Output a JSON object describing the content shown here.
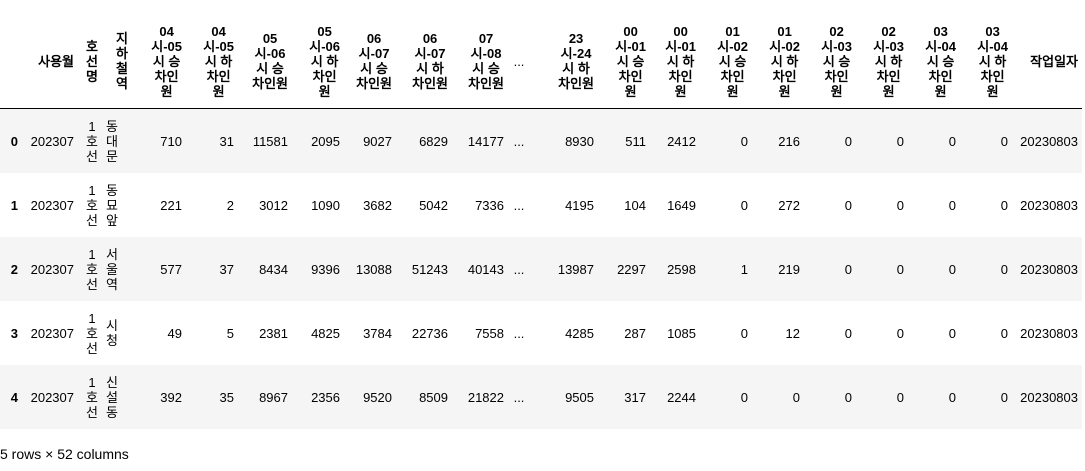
{
  "columns": [
    {
      "lines": [
        "사용월"
      ]
    },
    {
      "lines": [
        "호",
        "선",
        "명"
      ]
    },
    {
      "lines": [
        "지",
        "하",
        "철",
        "역"
      ]
    },
    {
      "lines": [
        "04",
        "시-05",
        "시 승",
        "차인",
        "원"
      ]
    },
    {
      "lines": [
        "04",
        "시-05",
        "시 하",
        "차인",
        "원"
      ]
    },
    {
      "lines": [
        "05",
        "시-06",
        "시 승",
        "차인원"
      ]
    },
    {
      "lines": [
        "05",
        "시-06",
        "시 하",
        "차인",
        "원"
      ]
    },
    {
      "lines": [
        "06",
        "시-07",
        "시 승",
        "차인원"
      ]
    },
    {
      "lines": [
        "06",
        "시-07",
        "시 하",
        "차인원"
      ]
    },
    {
      "lines": [
        "07",
        "시-08",
        "시 승",
        "차인원"
      ]
    },
    {
      "lines": [
        "..."
      ]
    },
    {
      "lines": [
        "23",
        "시-24",
        "시 하",
        "차인원"
      ]
    },
    {
      "lines": [
        "00",
        "시-01",
        "시 승",
        "차인",
        "원"
      ]
    },
    {
      "lines": [
        "00",
        "시-01",
        "시 하",
        "차인",
        "원"
      ]
    },
    {
      "lines": [
        "01",
        "시-02",
        "시 승",
        "차인",
        "원"
      ]
    },
    {
      "lines": [
        "01",
        "시-02",
        "시 하",
        "차인",
        "원"
      ]
    },
    {
      "lines": [
        "02",
        "시-03",
        "시 승",
        "차인",
        "원"
      ]
    },
    {
      "lines": [
        "02",
        "시-03",
        "시 하",
        "차인",
        "원"
      ]
    },
    {
      "lines": [
        "03",
        "시-04",
        "시 승",
        "차인",
        "원"
      ]
    },
    {
      "lines": [
        "03",
        "시-04",
        "시 하",
        "차인",
        "원"
      ]
    },
    {
      "lines": [
        "작업일자"
      ]
    }
  ],
  "rows": [
    {
      "index": "0",
      "month": "202307",
      "line": [
        "1",
        "호",
        "선"
      ],
      "station": [
        "동",
        "대",
        "문"
      ],
      "values": [
        "710",
        "31",
        "11581",
        "2095",
        "9027",
        "6829",
        "14177",
        "...",
        "8930",
        "511",
        "2412",
        "0",
        "216",
        "0",
        "0",
        "0",
        "0"
      ],
      "date": "20230803"
    },
    {
      "index": "1",
      "month": "202307",
      "line": [
        "1",
        "호",
        "선"
      ],
      "station": [
        "동",
        "묘",
        "앞"
      ],
      "values": [
        "221",
        "2",
        "3012",
        "1090",
        "3682",
        "5042",
        "7336",
        "...",
        "4195",
        "104",
        "1649",
        "0",
        "272",
        "0",
        "0",
        "0",
        "0"
      ],
      "date": "20230803"
    },
    {
      "index": "2",
      "month": "202307",
      "line": [
        "1",
        "호",
        "선"
      ],
      "station": [
        "서",
        "울",
        "역"
      ],
      "values": [
        "577",
        "37",
        "8434",
        "9396",
        "13088",
        "51243",
        "40143",
        "...",
        "13987",
        "2297",
        "2598",
        "1",
        "219",
        "0",
        "0",
        "0",
        "0"
      ],
      "date": "20230803"
    },
    {
      "index": "3",
      "month": "202307",
      "line": [
        "1",
        "호",
        "선"
      ],
      "station": [
        "시",
        "청"
      ],
      "values": [
        "49",
        "5",
        "2381",
        "4825",
        "3784",
        "22736",
        "7558",
        "...",
        "4285",
        "287",
        "1085",
        "0",
        "12",
        "0",
        "0",
        "0",
        "0"
      ],
      "date": "20230803"
    },
    {
      "index": "4",
      "month": "202307",
      "line": [
        "1",
        "호",
        "선"
      ],
      "station": [
        "신",
        "설",
        "동"
      ],
      "values": [
        "392",
        "35",
        "8967",
        "2356",
        "9520",
        "8509",
        "21822",
        "...",
        "9505",
        "317",
        "2244",
        "0",
        "0",
        "0",
        "0",
        "0",
        "0"
      ],
      "date": "20230803"
    }
  ],
  "footer": "5 rows × 52 columns"
}
